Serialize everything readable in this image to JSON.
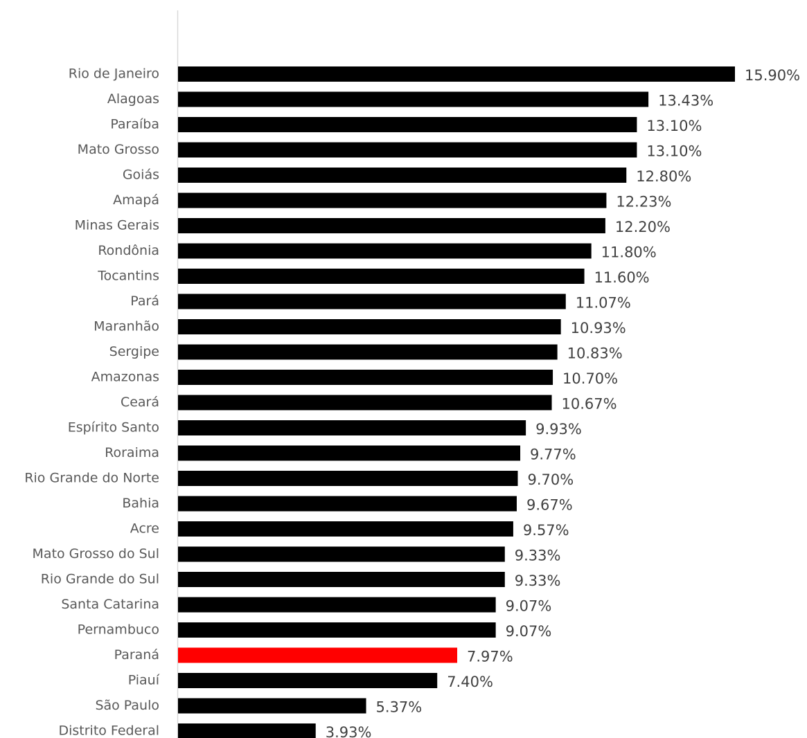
{
  "chart_data": {
    "type": "bar",
    "orientation": "horizontal",
    "categories": [
      "Rio de Janeiro",
      "Alagoas",
      "Paraíba",
      "Mato Grosso",
      "Goiás",
      "Amapá",
      "Minas Gerais",
      "Rondônia",
      "Tocantins",
      "Pará",
      "Maranhão",
      "Sergipe",
      "Amazonas",
      "Ceará",
      "Espírito Santo",
      "Roraima",
      "Rio Grande do Norte",
      "Bahia",
      "Acre",
      "Mato Grosso do Sul",
      "Rio Grande do Sul",
      "Santa Catarina",
      "Pernambuco",
      "Paraná",
      "Piauí",
      "São Paulo",
      "Distrito Federal"
    ],
    "values": [
      15.9,
      13.43,
      13.1,
      13.1,
      12.8,
      12.23,
      12.2,
      11.8,
      11.6,
      11.07,
      10.93,
      10.83,
      10.7,
      10.67,
      9.93,
      9.77,
      9.7,
      9.67,
      9.57,
      9.33,
      9.33,
      9.07,
      9.07,
      7.97,
      7.4,
      5.37,
      3.93
    ],
    "value_labels": [
      "15.90%",
      "13.43%",
      "13.10%",
      "13.10%",
      "12.80%",
      "12.23%",
      "12.20%",
      "11.80%",
      "11.60%",
      "11.07%",
      "10.93%",
      "10.83%",
      "10.70%",
      "10.67%",
      "9.93%",
      "9.77%",
      "9.70%",
      "9.67%",
      "9.57%",
      "9.33%",
      "9.33%",
      "9.07%",
      "9.07%",
      "7.97%",
      "7.40%",
      "5.37%",
      "3.93%"
    ],
    "colors": [
      "#000000",
      "#000000",
      "#000000",
      "#000000",
      "#000000",
      "#000000",
      "#000000",
      "#000000",
      "#000000",
      "#000000",
      "#000000",
      "#000000",
      "#000000",
      "#000000",
      "#000000",
      "#000000",
      "#000000",
      "#000000",
      "#000000",
      "#000000",
      "#000000",
      "#000000",
      "#000000",
      "#ff0000",
      "#000000",
      "#000000",
      "#000000"
    ]
  }
}
